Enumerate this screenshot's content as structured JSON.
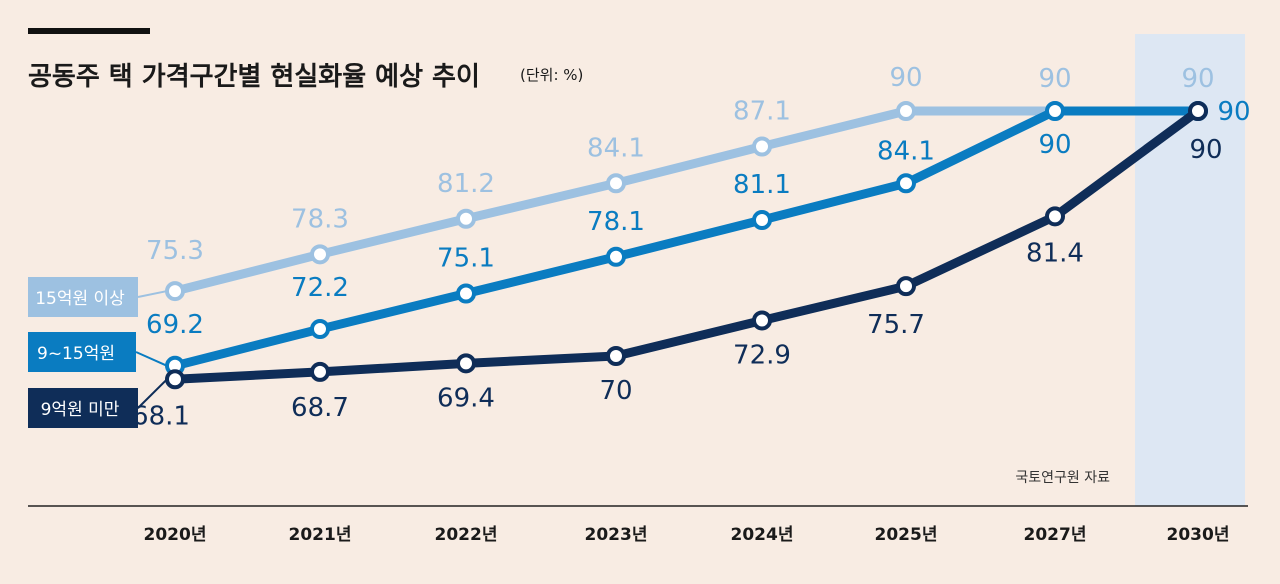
{
  "title": "공동주 택 가격구간별 현실화율 예상 추이",
  "unit": "(단위: %)",
  "source": "국토연구원 자료",
  "colors": {
    "background": "#f8ece3",
    "highlight": "#dde7f3",
    "series_light": "#9dc1e1",
    "series_mid": "#0a7cc1",
    "series_dark": "#0f2d58"
  },
  "chart_data": {
    "type": "line",
    "title": "공동주 택 가격구간별 현실화율 예상 추이",
    "unit": "(단위: %)",
    "categories": [
      "2020년",
      "2021년",
      "2022년",
      "2023년",
      "2024년",
      "2025년",
      "2027년",
      "2030년"
    ],
    "highlighted_category": "2030년",
    "series": [
      {
        "name": "15억원 이상",
        "values": [
          75.3,
          78.3,
          81.2,
          84.1,
          87.1,
          90,
          90,
          90
        ]
      },
      {
        "name": "9~15억원",
        "values": [
          69.2,
          72.2,
          75.1,
          78.1,
          81.1,
          84.1,
          90,
          90
        ]
      },
      {
        "name": "9억원 미만",
        "values": [
          68.1,
          68.7,
          69.4,
          70,
          72.9,
          75.7,
          81.4,
          90
        ]
      }
    ],
    "grid": false,
    "legend": "left"
  }
}
